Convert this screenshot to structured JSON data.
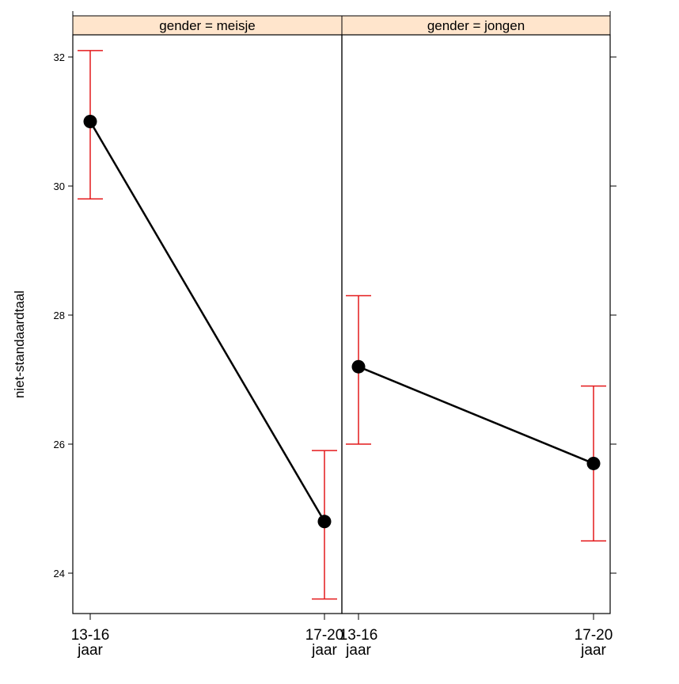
{
  "chart_data": {
    "type": "line",
    "ylabel": "niet-standaardtaal",
    "ylim": [
      23.5,
      32.3
    ],
    "y_ticks": [
      24,
      26,
      28,
      30,
      32
    ],
    "categories": [
      "13-16\njaar",
      "17-20\njaar"
    ],
    "error_bar_color": "#e41a1c",
    "strip_color": "#ffe5cc",
    "panels": [
      {
        "label": "gender = meisje",
        "values": [
          31.0,
          24.8
        ],
        "lower": [
          29.8,
          23.6
        ],
        "upper": [
          32.1,
          25.9
        ]
      },
      {
        "label": "gender =  jongen",
        "values": [
          27.2,
          25.7
        ],
        "lower": [
          26.0,
          24.5
        ],
        "upper": [
          28.3,
          26.9
        ]
      }
    ]
  }
}
